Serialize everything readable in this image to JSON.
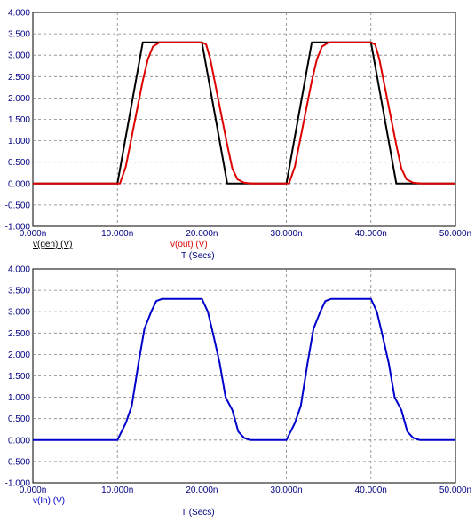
{
  "chart_data": [
    {
      "type": "line",
      "xlabel": "T (Secs)",
      "xlim": [
        0,
        50
      ],
      "ylim": [
        -1,
        4
      ],
      "x_ticks": [
        "0.000n",
        "10.000n",
        "20.000n",
        "30.000n",
        "40.000n",
        "50.000n"
      ],
      "y_ticks": [
        "4.000",
        "3.500",
        "3.000",
        "2.500",
        "2.000",
        "1.500",
        "1.000",
        "0.500",
        "0.000",
        "-0.500",
        "-1.000"
      ],
      "grid": true,
      "series": [
        {
          "name": "v(gen) (V)",
          "color": "#000000",
          "x": [
            0,
            10,
            13,
            15,
            20,
            23,
            30,
            33,
            35,
            40,
            43,
            50
          ],
          "y": [
            0,
            0,
            3.3,
            3.3,
            3.3,
            0,
            0,
            3.3,
            3.3,
            3.3,
            0,
            0
          ]
        },
        {
          "name": "v(out) (V)",
          "color": "#dd0000",
          "x": [
            0,
            10.3,
            11,
            12,
            13,
            13.6,
            14.2,
            15,
            20,
            20.5,
            21,
            22,
            23,
            23.6,
            24.2,
            25,
            26,
            30.3,
            31,
            32,
            33,
            33.6,
            34.2,
            35,
            40,
            40.5,
            41,
            42,
            43,
            43.6,
            44.2,
            45,
            46,
            50
          ],
          "y": [
            0,
            0,
            0.4,
            1.4,
            2.4,
            2.9,
            3.2,
            3.3,
            3.3,
            3.25,
            2.9,
            1.9,
            0.9,
            0.35,
            0.1,
            0.02,
            0,
            0,
            0.4,
            1.4,
            2.4,
            2.9,
            3.2,
            3.3,
            3.3,
            3.25,
            2.9,
            1.9,
            0.9,
            0.35,
            0.1,
            0.02,
            0,
            0
          ]
        }
      ]
    },
    {
      "type": "line",
      "xlabel": "T (Secs)",
      "xlim": [
        0,
        50
      ],
      "ylim": [
        -1,
        4
      ],
      "x_ticks": [
        "0.000n",
        "10.000n",
        "20.000n",
        "30.000n",
        "40.000n",
        "50.000n"
      ],
      "y_ticks": [
        "4.000",
        "3.500",
        "3.000",
        "2.500",
        "2.000",
        "1.500",
        "1.000",
        "0.500",
        "0.000",
        "-0.500",
        "-1.000"
      ],
      "grid": true,
      "series": [
        {
          "name": "v(In) (V)",
          "color": "#0000cc",
          "x": [
            0,
            10,
            11,
            11.7,
            12.5,
            13.2,
            14,
            14.6,
            15.3,
            16,
            20,
            20.7,
            21.3,
            22.1,
            22.8,
            23.6,
            24.3,
            25,
            25.8,
            27,
            30,
            31,
            31.7,
            32.5,
            33.2,
            34,
            34.6,
            35.3,
            36,
            40,
            40.7,
            41.3,
            42.1,
            42.8,
            43.6,
            44.3,
            45,
            45.8,
            47,
            50
          ],
          "y": [
            0,
            0,
            0.4,
            0.8,
            1.8,
            2.6,
            3.0,
            3.25,
            3.3,
            3.3,
            3.3,
            3.0,
            2.5,
            1.8,
            1.0,
            0.7,
            0.2,
            0.05,
            0.0,
            0,
            0,
            0.4,
            0.8,
            1.8,
            2.6,
            3.0,
            3.25,
            3.3,
            3.3,
            3.3,
            3.0,
            2.5,
            1.8,
            1.0,
            0.7,
            0.2,
            0.05,
            0.0,
            0,
            0
          ]
        }
      ]
    }
  ]
}
